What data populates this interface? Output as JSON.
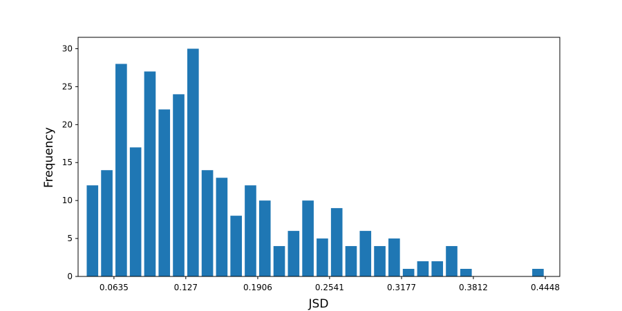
{
  "chart_data": {
    "type": "bar",
    "title": "",
    "xlabel": "JSD",
    "ylabel": "Frequency",
    "bar_color": "#1f77b4",
    "xlim": [
      0.0318,
      0.4576
    ],
    "ylim": [
      0,
      31.5
    ],
    "bin_width": 0.0127,
    "x": [
      0.0445,
      0.0572,
      0.0699,
      0.0826,
      0.0953,
      0.108,
      0.1207,
      0.1334,
      0.1461,
      0.1588,
      0.1715,
      0.1842,
      0.1969,
      0.2096,
      0.2223,
      0.235,
      0.2477,
      0.2604,
      0.2731,
      0.2858,
      0.2985,
      0.3112,
      0.3239,
      0.3366,
      0.3493,
      0.362,
      0.3747,
      0.4383
    ],
    "values": [
      12,
      14,
      28,
      17,
      27,
      22,
      24,
      30,
      14,
      13,
      8,
      12,
      10,
      4,
      6,
      10,
      5,
      9,
      4,
      6,
      4,
      5,
      1,
      2,
      2,
      4,
      1,
      1
    ],
    "x_ticks": [
      {
        "value": 0.0635,
        "label": "0.0635"
      },
      {
        "value": 0.127,
        "label": "0.127"
      },
      {
        "value": 0.1906,
        "label": "0.1906"
      },
      {
        "value": 0.2541,
        "label": "0.2541"
      },
      {
        "value": 0.3177,
        "label": "0.3177"
      },
      {
        "value": 0.3812,
        "label": "0.3812"
      },
      {
        "value": 0.4448,
        "label": "0.4448"
      }
    ],
    "y_ticks": [
      {
        "value": 0,
        "label": "0"
      },
      {
        "value": 5,
        "label": "5"
      },
      {
        "value": 10,
        "label": "10"
      },
      {
        "value": 15,
        "label": "15"
      },
      {
        "value": 20,
        "label": "20"
      },
      {
        "value": 25,
        "label": "25"
      },
      {
        "value": 30,
        "label": "30"
      }
    ],
    "grid": false,
    "legend": false
  }
}
